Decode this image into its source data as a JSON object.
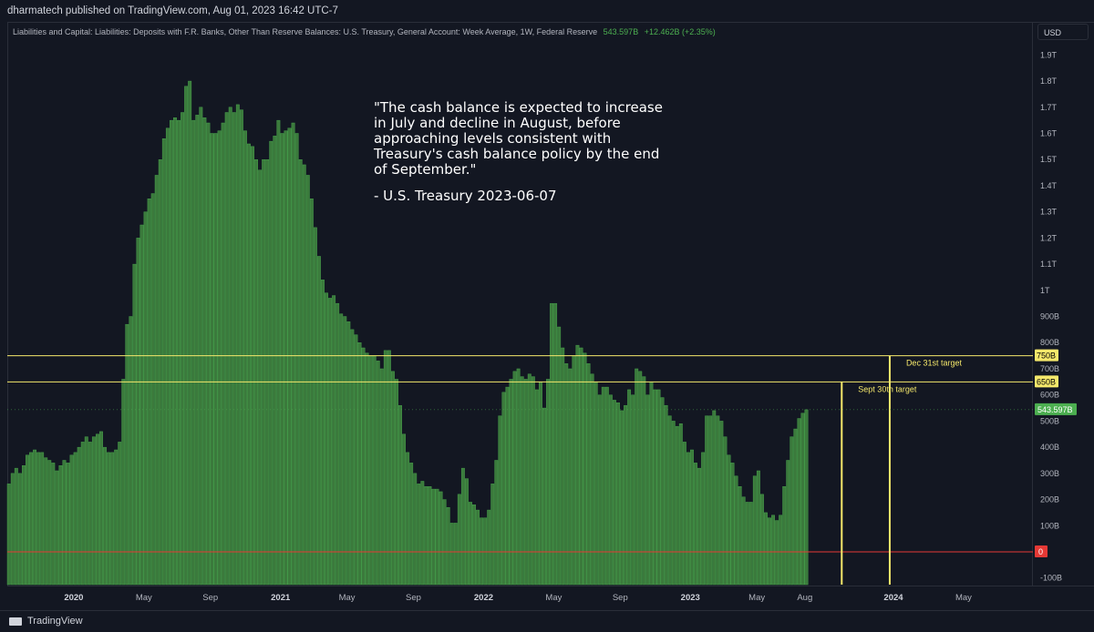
{
  "header": {
    "publisher": "dharmatech published on TradingView.com, Aug 01, 2023 16:42 UTC-7"
  },
  "legend": {
    "series_title": "Liabilities and Capital: Liabilities: Deposits with F.R. Banks, Other Than Reserve Balances: U.S. Treasury, General Account: Week Average, 1W, Federal Reserve",
    "last_value": "543.597B",
    "change": "+12.462B (+2.35%)"
  },
  "axis": {
    "currency": "USD"
  },
  "annotation": {
    "quote": "\"The cash balance is expected to increase in July and decline in August, before approaching levels consistent with Treasury's cash balance policy by the end of September.\"",
    "author": "- U.S. Treasury 2023-06-07"
  },
  "footer": {
    "brand": "TradingView"
  },
  "colors": {
    "background": "#131722",
    "bar": "#3b7a3c",
    "bar_edge": "#4caf50",
    "zero_line": "#e53935",
    "target_line": "#f5e86b",
    "last_value_bg": "#4caf50"
  },
  "chart_data": {
    "type": "bar",
    "ylim": [
      -120,
      1980
    ],
    "y_unit": "B",
    "y_ticks": [
      {
        "value": 1900,
        "label": "1.9T"
      },
      {
        "value": 1800,
        "label": "1.8T"
      },
      {
        "value": 1700,
        "label": "1.7T"
      },
      {
        "value": 1600,
        "label": "1.6T"
      },
      {
        "value": 1500,
        "label": "1.5T"
      },
      {
        "value": 1400,
        "label": "1.4T"
      },
      {
        "value": 1300,
        "label": "1.3T"
      },
      {
        "value": 1200,
        "label": "1.2T"
      },
      {
        "value": 1100,
        "label": "1.1T"
      },
      {
        "value": 1000,
        "label": "1T"
      },
      {
        "value": 900,
        "label": "900B"
      },
      {
        "value": 800,
        "label": "800B"
      },
      {
        "value": 700,
        "label": "700B"
      },
      {
        "value": 600,
        "label": "600B"
      },
      {
        "value": 500,
        "label": "500B"
      },
      {
        "value": 400,
        "label": "400B"
      },
      {
        "value": 300,
        "label": "300B"
      },
      {
        "value": 200,
        "label": "200B"
      },
      {
        "value": 100,
        "label": "100B"
      },
      {
        "value": -100,
        "label": "-100B"
      }
    ],
    "x_ticks": [
      {
        "label": "2020",
        "bold": true,
        "index": 18
      },
      {
        "label": "May",
        "bold": false,
        "index": 37
      },
      {
        "label": "Sep",
        "bold": false,
        "index": 55
      },
      {
        "label": "2021",
        "bold": true,
        "index": 74
      },
      {
        "label": "May",
        "bold": false,
        "index": 92
      },
      {
        "label": "Sep",
        "bold": false,
        "index": 110
      },
      {
        "label": "2022",
        "bold": true,
        "index": 129
      },
      {
        "label": "May",
        "bold": false,
        "index": 148
      },
      {
        "label": "Sep",
        "bold": false,
        "index": 166
      },
      {
        "label": "2023",
        "bold": true,
        "index": 185
      },
      {
        "label": "May",
        "bold": false,
        "index": 203
      },
      {
        "label": "Aug",
        "bold": false,
        "index": 216
      },
      {
        "label": "2024",
        "bold": true,
        "index": 240
      },
      {
        "label": "May",
        "bold": false,
        "index": 259
      }
    ],
    "start_date": "2019-10-02",
    "frequency": "1W",
    "values": [
      260,
      300,
      320,
      300,
      330,
      370,
      380,
      390,
      380,
      380,
      360,
      350,
      340,
      310,
      330,
      350,
      340,
      370,
      380,
      400,
      420,
      440,
      420,
      440,
      450,
      460,
      400,
      380,
      380,
      390,
      420,
      660,
      870,
      900,
      1100,
      1200,
      1250,
      1300,
      1350,
      1370,
      1440,
      1500,
      1580,
      1620,
      1650,
      1660,
      1650,
      1680,
      1780,
      1800,
      1650,
      1670,
      1700,
      1660,
      1640,
      1600,
      1600,
      1610,
      1640,
      1680,
      1700,
      1680,
      1710,
      1690,
      1610,
      1560,
      1550,
      1500,
      1460,
      1500,
      1500,
      1570,
      1590,
      1650,
      1600,
      1610,
      1620,
      1640,
      1600,
      1500,
      1480,
      1440,
      1350,
      1240,
      1130,
      1040,
      990,
      970,
      980,
      950,
      910,
      900,
      880,
      850,
      830,
      800,
      780,
      760,
      750,
      750,
      730,
      700,
      770,
      770,
      690,
      660,
      560,
      450,
      380,
      340,
      300,
      260,
      270,
      250,
      250,
      240,
      240,
      230,
      200,
      170,
      110,
      110,
      220,
      320,
      280,
      190,
      180,
      160,
      130,
      130,
      160,
      260,
      350,
      520,
      610,
      630,
      660,
      690,
      700,
      670,
      660,
      680,
      670,
      620,
      650,
      550,
      660,
      950,
      950,
      860,
      780,
      720,
      700,
      750,
      790,
      780,
      760,
      720,
      680,
      650,
      600,
      630,
      630,
      600,
      580,
      570,
      540,
      560,
      620,
      600,
      700,
      690,
      670,
      600,
      650,
      620,
      620,
      590,
      560,
      520,
      500,
      480,
      490,
      420,
      380,
      390,
      340,
      320,
      380,
      520,
      520,
      540,
      520,
      500,
      440,
      370,
      340,
      290,
      250,
      210,
      190,
      190,
      290,
      310,
      220,
      150,
      130,
      140,
      120,
      140,
      250,
      350,
      440,
      470,
      510,
      530,
      543.597
    ],
    "horizontal_lines": [
      {
        "value": 750,
        "label": "750B",
        "annotation": "Dec 31st target"
      },
      {
        "value": 650,
        "label": "650B",
        "annotation": "Sept 30th target"
      }
    ],
    "zero_line": {
      "value": 0,
      "label": "0"
    },
    "last_value_label": "543.597B",
    "target_markers": [
      {
        "index": 226,
        "value": 650,
        "date_label": "Sept 30th target"
      },
      {
        "index": 239,
        "value": 750,
        "date_label": "Dec 31st target"
      }
    ]
  }
}
